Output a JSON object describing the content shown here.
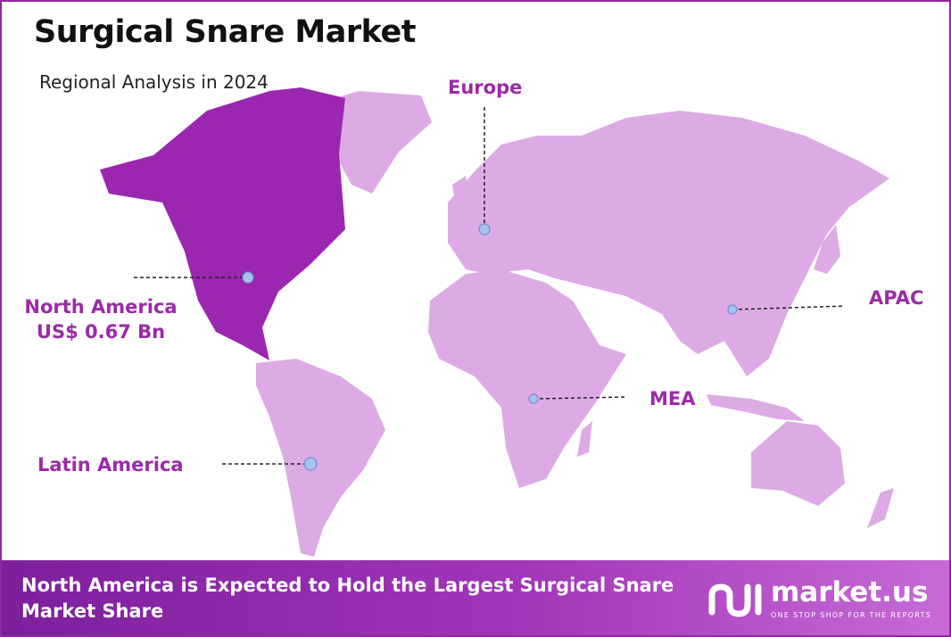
{
  "header": {
    "title": "Surgical Snare Market",
    "subtitle": "Regional Analysis in 2024"
  },
  "regions": [
    {
      "name": "North America",
      "value": "US$ 0.67 Bn"
    },
    {
      "name": "Europe"
    },
    {
      "name": "APAC"
    },
    {
      "name": "MEA"
    },
    {
      "name": "Latin America"
    }
  ],
  "footer": {
    "text": "North America is Expected to Hold the Largest Surgical Snare Market Share",
    "brand": "market.us",
    "tagline": "ONE STOP SHOP FOR THE REPORTS"
  }
}
